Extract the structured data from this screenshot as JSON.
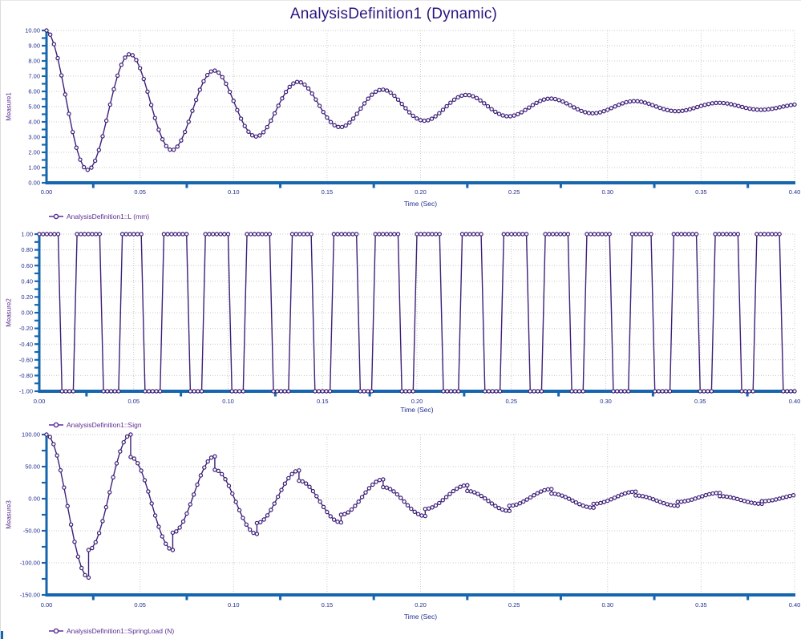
{
  "title": "AnalysisDefinition1 (Dynamic)",
  "colors": {
    "curve": "#3e1f78",
    "marker_fill": "#ffffff",
    "axis": "#1566ae",
    "tick_label": "#23308f",
    "legend_text": "#5c2d92",
    "title_text": "#2c1480",
    "grid": "#c9c9c9"
  },
  "charts": [
    {
      "y_title": "Measure1",
      "x_title": "Time (Sec)",
      "legend_label": "AnalysisDefinition1::L (mm)",
      "x_tick_labels": [
        "0.00",
        "0.05",
        "0.10",
        "0.15",
        "0.20",
        "0.25",
        "0.30",
        "0.35",
        "0.40"
      ],
      "y_tick_labels": [
        "10.00",
        "9.00",
        "8.00",
        "7.00",
        "6.00",
        "5.00",
        "4.00",
        "3.00",
        "2.00",
        "1.00",
        "0.00"
      ]
    },
    {
      "y_title": "Measure2",
      "x_title": "Time (Sec)",
      "legend_label": "AnalysisDefinition1::Sign",
      "x_tick_labels": [
        "0.00",
        "0.05",
        "0.10",
        "0.15",
        "0.20",
        "0.25",
        "0.30",
        "0.35",
        "0.40"
      ],
      "y_tick_labels": [
        "1.00",
        "0.80",
        "0.60",
        "0.40",
        "0.20",
        "0.00",
        "-0.20",
        "-0.40",
        "-0.60",
        "-0.80",
        "-1.00"
      ]
    },
    {
      "y_title": "Measure3",
      "x_title": "Time (Sec)",
      "legend_label": "AnalysisDefinition1::SpringLoad (N)",
      "x_tick_labels": [
        "0.00",
        "0.05",
        "0.10",
        "0.15",
        "0.20",
        "0.25",
        "0.30",
        "0.35",
        "0.40"
      ],
      "y_tick_labels": [
        "100.00",
        "50.00",
        "0.00",
        "-50.00",
        "-100.00",
        "-150.00"
      ]
    }
  ],
  "chart_data": [
    {
      "type": "line",
      "title": "Measure1",
      "series_name": "AnalysisDefinition1::L (mm)",
      "xlabel": "Time (Sec)",
      "ylabel": "Measure1",
      "xlim": [
        0,
        0.4
      ],
      "ylim": [
        0,
        10
      ],
      "x_tick_step": 0.05,
      "y_tick_step": 1.0,
      "grid": true,
      "legend_position": "bottom-left",
      "marker": "hollow-circle",
      "model": {
        "kind": "damped_cosine",
        "equilibrium": 5.0,
        "initial_amplitude": 5.0,
        "period": 0.045,
        "decay_tau": 0.12,
        "sample_dt": 0.002,
        "t_end": 0.4
      },
      "extrema": [
        {
          "t": 0.0,
          "v": 10.0
        },
        {
          "t": 0.0225,
          "v": 0.9
        },
        {
          "t": 0.045,
          "v": 8.4
        },
        {
          "t": 0.0675,
          "v": 2.2
        },
        {
          "t": 0.09,
          "v": 7.3
        },
        {
          "t": 0.1125,
          "v": 3.1
        },
        {
          "t": 0.135,
          "v": 6.6
        },
        {
          "t": 0.1575,
          "v": 3.7
        },
        {
          "t": 0.18,
          "v": 6.1
        },
        {
          "t": 0.2025,
          "v": 4.2
        },
        {
          "t": 0.225,
          "v": 5.8
        },
        {
          "t": 0.2475,
          "v": 4.5
        },
        {
          "t": 0.27,
          "v": 5.5
        },
        {
          "t": 0.2925,
          "v": 4.6
        },
        {
          "t": 0.315,
          "v": 5.4
        },
        {
          "t": 0.3375,
          "v": 4.7
        },
        {
          "t": 0.36,
          "v": 5.25
        },
        {
          "t": 0.3825,
          "v": 4.8
        },
        {
          "t": 0.4,
          "v": 5.1
        }
      ]
    },
    {
      "type": "line",
      "title": "Measure2",
      "series_name": "AnalysisDefinition1::Sign",
      "xlabel": "Time (Sec)",
      "ylabel": "Measure2",
      "xlim": [
        0,
        0.4
      ],
      "ylim": [
        -1,
        1
      ],
      "x_tick_step": 0.05,
      "y_tick_step": 0.2,
      "grid": true,
      "legend_position": "bottom-left",
      "marker": "hollow-circle",
      "description": "Square wave alternating between +1.00 and -1.00; +1 while mod(t+0.0028, 0.0225) < 0.0135, otherwise -1",
      "model": {
        "kind": "square_wave",
        "high": 1.0,
        "low": -1.0,
        "period": 0.0225,
        "phase_lead": 0.0028,
        "high_duration": 0.0135,
        "sample_dt": 0.002,
        "t_end": 0.4
      }
    },
    {
      "type": "line",
      "title": "Measure3",
      "series_name": "AnalysisDefinition1::SpringLoad (N)",
      "xlabel": "Time (Sec)",
      "ylabel": "Measure3",
      "xlim": [
        0,
        0.4
      ],
      "ylim": [
        -150,
        100
      ],
      "x_tick_step": 0.05,
      "y_tick_step": 50,
      "grid": true,
      "legend_position": "bottom-left",
      "marker": "hollow-circle",
      "model": {
        "kind": "piecewise_halfcos",
        "reversal_period": 0.0225,
        "post_jump_values": [
          100,
          -80,
          65,
          -53,
          45,
          -38,
          28,
          -25,
          18,
          -16,
          12,
          -11,
          8,
          -8,
          5,
          -5,
          4,
          -4
        ],
        "extreme_values": [
          -123,
          100,
          -80,
          66,
          -55,
          44,
          -37,
          30,
          -27,
          21,
          -19,
          15,
          -14,
          11,
          -11,
          9,
          -8,
          7
        ],
        "sample_dt": 0.002,
        "t_end": 0.4
      },
      "jumps": [
        {
          "t": 0.0,
          "value": 100
        },
        {
          "t": 0.0225,
          "before": -123,
          "after": -80
        },
        {
          "t": 0.045,
          "before": 100,
          "after": 65
        },
        {
          "t": 0.0675,
          "before": -80,
          "after": -53
        },
        {
          "t": 0.09,
          "before": 66,
          "after": 45
        },
        {
          "t": 0.1125,
          "before": -55,
          "after": -38
        },
        {
          "t": 0.135,
          "before": 44,
          "after": 28
        },
        {
          "t": 0.1575,
          "before": -37,
          "after": -25
        },
        {
          "t": 0.18,
          "before": 30,
          "after": 18
        },
        {
          "t": 0.2025,
          "before": -27,
          "after": -16
        },
        {
          "t": 0.225,
          "before": 21,
          "after": 12
        },
        {
          "t": 0.2475,
          "before": -19,
          "after": -11
        },
        {
          "t": 0.27,
          "before": 15,
          "after": 8
        },
        {
          "t": 0.2925,
          "before": -14,
          "after": -8
        },
        {
          "t": 0.315,
          "before": 11,
          "after": 5
        },
        {
          "t": 0.3375,
          "before": -11,
          "after": -5
        },
        {
          "t": 0.36,
          "before": 9,
          "after": 4
        },
        {
          "t": 0.3825,
          "before": -8,
          "after": -4
        }
      ]
    }
  ]
}
